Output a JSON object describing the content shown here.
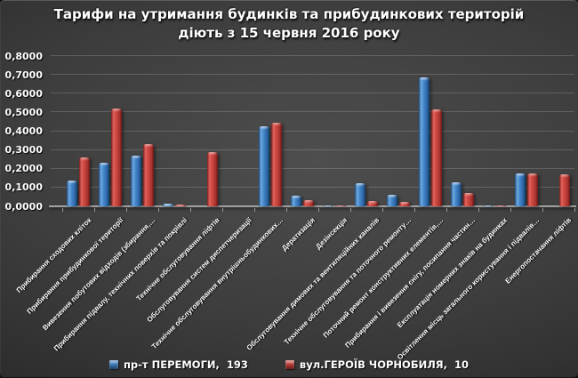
{
  "slide": {
    "title_line1": "Тарифи на утримання будинків та прибудинкових територій",
    "title_line2": "діють з 15 червня 2016 року"
  },
  "chart_data": {
    "type": "bar",
    "title": "Тарифи на утримання будинків та прибудинкових територій діють з 15 червня 2016 року",
    "categories": [
      "Прибирання сходових кліток",
      "Прибирання прибудинкової території",
      "Вивезення побутових відходів (збирання,…",
      "Прибирання підвалу, технічних поверхів та покрівлі",
      "Технічне обслуговування ліфтів",
      "Обслуговування систем диспетчеризації",
      "Технічне обслуговування внутрішньобудинкових…",
      "Дератизація",
      "Дезінсекція",
      "Обслуговування димових та вентиляційних каналів",
      "Технічне обслуговування та поточного ремонту…",
      "Поточний ремонт конструктивних елементів,…",
      "Прибирання і вивезення снігу, посипання частин…",
      "Експлуатація номерних знаків на будинках",
      "Освітлення місць загального користування і підвалів…",
      "Енергопостачання ліфтів"
    ],
    "series": [
      {
        "name": "пр-т ПЕРЕМОГИ,  193",
        "color": "#3c7cc1",
        "values": [
          0.135,
          0.232,
          0.272,
          0.014,
          0,
          0,
          0.425,
          0.055,
          0.003,
          0.125,
          0.06,
          0.688,
          0.13,
          0.006,
          0.175,
          0
        ]
      },
      {
        "name": "вул.ГЕРОЇВ ЧОРНОБИЛЯ,  10",
        "color": "#c23a36",
        "values": [
          0.26,
          0.52,
          0.332,
          0.01,
          0.29,
          0,
          0.445,
          0.032,
          0.002,
          0.03,
          0.025,
          0.515,
          0.07,
          0.004,
          0.173,
          0.17
        ]
      }
    ],
    "ylim": [
      0,
      0.8
    ],
    "ytick_step": 0.1,
    "ytick_labels": [
      "0,0000",
      "0,1000",
      "0,2000",
      "0,3000",
      "0,4000",
      "0,5000",
      "0,6000",
      "0,7000",
      "0,8000"
    ],
    "grid": true,
    "legend_position": "bottom",
    "checkmark_category_indices": [
      6,
      11
    ],
    "checkmark_color": "#1eb52c",
    "background_color": "#3f3f3f",
    "axis_text_color": "#ffffff"
  }
}
